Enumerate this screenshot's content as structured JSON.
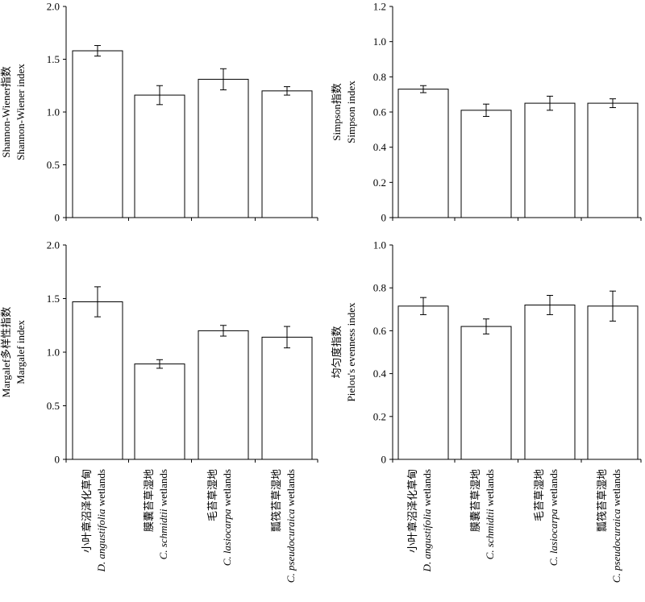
{
  "chart_data": [
    {
      "type": "bar",
      "ylabel_lines": [
        "Shannon-Wiener指数",
        "Shannon-Wiener index"
      ],
      "ylim": [
        0,
        2.0
      ],
      "yticks": [
        "0",
        "0.5",
        "1.0",
        "1.5",
        "2.0"
      ],
      "values": [
        1.58,
        1.16,
        1.31,
        1.2
      ],
      "errors": [
        0.05,
        0.09,
        0.1,
        0.04
      ]
    },
    {
      "type": "bar",
      "ylabel_lines": [
        "Simpson指数",
        "Simpson index"
      ],
      "ylim": [
        0,
        1.2
      ],
      "yticks": [
        "0",
        "0.2",
        "0.4",
        "0.6",
        "0.8",
        "1.0",
        "1.2"
      ],
      "values": [
        0.73,
        0.61,
        0.65,
        0.65
      ],
      "errors": [
        0.02,
        0.035,
        0.04,
        0.025
      ]
    },
    {
      "type": "bar",
      "ylabel_lines": [
        "Margalef多样性指数",
        "Margalef index"
      ],
      "ylim": [
        0,
        2.0
      ],
      "yticks": [
        "0",
        "0.5",
        "1.0",
        "1.5",
        "2.0"
      ],
      "values": [
        1.47,
        0.89,
        1.2,
        1.14
      ],
      "errors": [
        0.14,
        0.04,
        0.05,
        0.1
      ]
    },
    {
      "type": "bar",
      "ylabel_lines": [
        "均匀度指数",
        "Pielou's  evenness index"
      ],
      "ylim": [
        0,
        1.0
      ],
      "yticks": [
        "0",
        "0.2",
        "0.4",
        "0.6",
        "0.8",
        "1.0"
      ],
      "values": [
        0.715,
        0.62,
        0.72,
        0.715
      ],
      "errors": [
        0.04,
        0.035,
        0.045,
        0.07
      ]
    }
  ],
  "categories": [
    {
      "zh": "小叶章沼泽化草甸",
      "species": "D. angustifolia",
      "suffix": " wetlands"
    },
    {
      "zh": "膜囊苔草湿地",
      "species": "C. schmidtii",
      "suffix": " wetlands"
    },
    {
      "zh": "毛苔草湿地",
      "species": "C. lasiocarpa",
      "suffix": " wetlands"
    },
    {
      "zh": "瓢筏苔草湿地",
      "species": "C. pseudocuraica",
      "suffix": " wetlands"
    }
  ]
}
